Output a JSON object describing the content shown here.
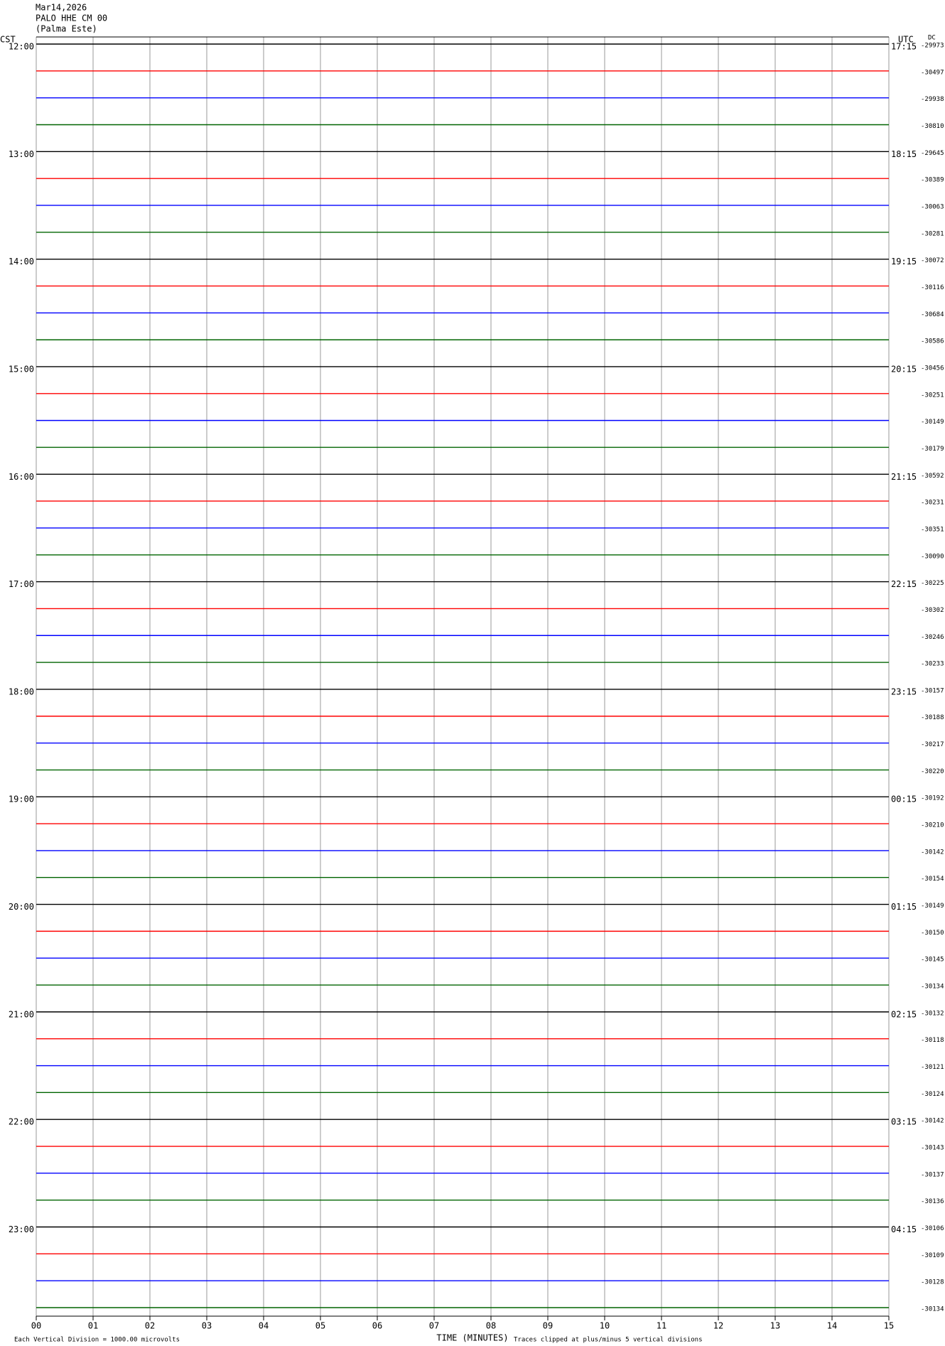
{
  "header": {
    "date": "Mar14,2026",
    "station": "PALO HHE CM 00",
    "location": "(Palma Este)"
  },
  "chart_data": {
    "type": "helicorder",
    "left_axis_label": "CST",
    "right_axis_label": "UTC",
    "offset_label": "DC",
    "xlabel": "TIME (MINUTES)",
    "xlim": [
      0,
      15
    ],
    "xticks": [
      {
        "value": 0,
        "label": "00"
      },
      {
        "value": 1,
        "label": "01"
      },
      {
        "value": 2,
        "label": "02"
      },
      {
        "value": 3,
        "label": "03"
      },
      {
        "value": 4,
        "label": "04"
      },
      {
        "value": 5,
        "label": "05"
      },
      {
        "value": 6,
        "label": "06"
      },
      {
        "value": 7,
        "label": "07"
      },
      {
        "value": 8,
        "label": "08"
      },
      {
        "value": 9,
        "label": "09"
      },
      {
        "value": 10,
        "label": "10"
      },
      {
        "value": 11,
        "label": "11"
      },
      {
        "value": 12,
        "label": "12"
      },
      {
        "value": 13,
        "label": "13"
      },
      {
        "value": 14,
        "label": "14"
      },
      {
        "value": 15,
        "label": "15"
      }
    ],
    "cst_labels": [
      "12:00",
      "13:00",
      "14:00",
      "15:00",
      "16:00",
      "17:00",
      "18:00",
      "19:00",
      "20:00",
      "21:00",
      "22:00",
      "23:00"
    ],
    "utc_labels": [
      "17:15",
      "18:15",
      "19:15",
      "20:15",
      "21:15",
      "22:15",
      "23:15",
      "00:15",
      "01:15",
      "02:15",
      "03:15",
      "04:15"
    ],
    "trace_colors": [
      "#000000",
      "#ff0000",
      "#0000ff",
      "#006400"
    ],
    "dc_offsets": [
      -29973,
      -30497,
      -29938,
      -30810,
      -29645,
      -30389,
      -30063,
      -30281,
      -30072,
      -30116,
      -30684,
      -30586,
      -30456,
      -30251,
      -30149,
      -30179,
      -30592,
      -30231,
      -30351,
      -30090,
      -30225,
      -30302,
      -30246,
      -30233,
      -30157,
      -30188,
      -30217,
      -30220,
      -30192,
      -30210,
      -30142,
      -30154,
      -30149,
      -30150,
      -30145,
      -30134,
      -30132,
      -30118,
      -30121,
      -30124,
      -30142,
      -30143,
      -30137,
      -30136,
      -30106,
      -30109,
      -30128,
      -30134
    ],
    "scale_note": "Each Vertical Division = 1000.00 microvolts",
    "clip_note": "Traces clipped at plus/minus 5 vertical divisions"
  }
}
